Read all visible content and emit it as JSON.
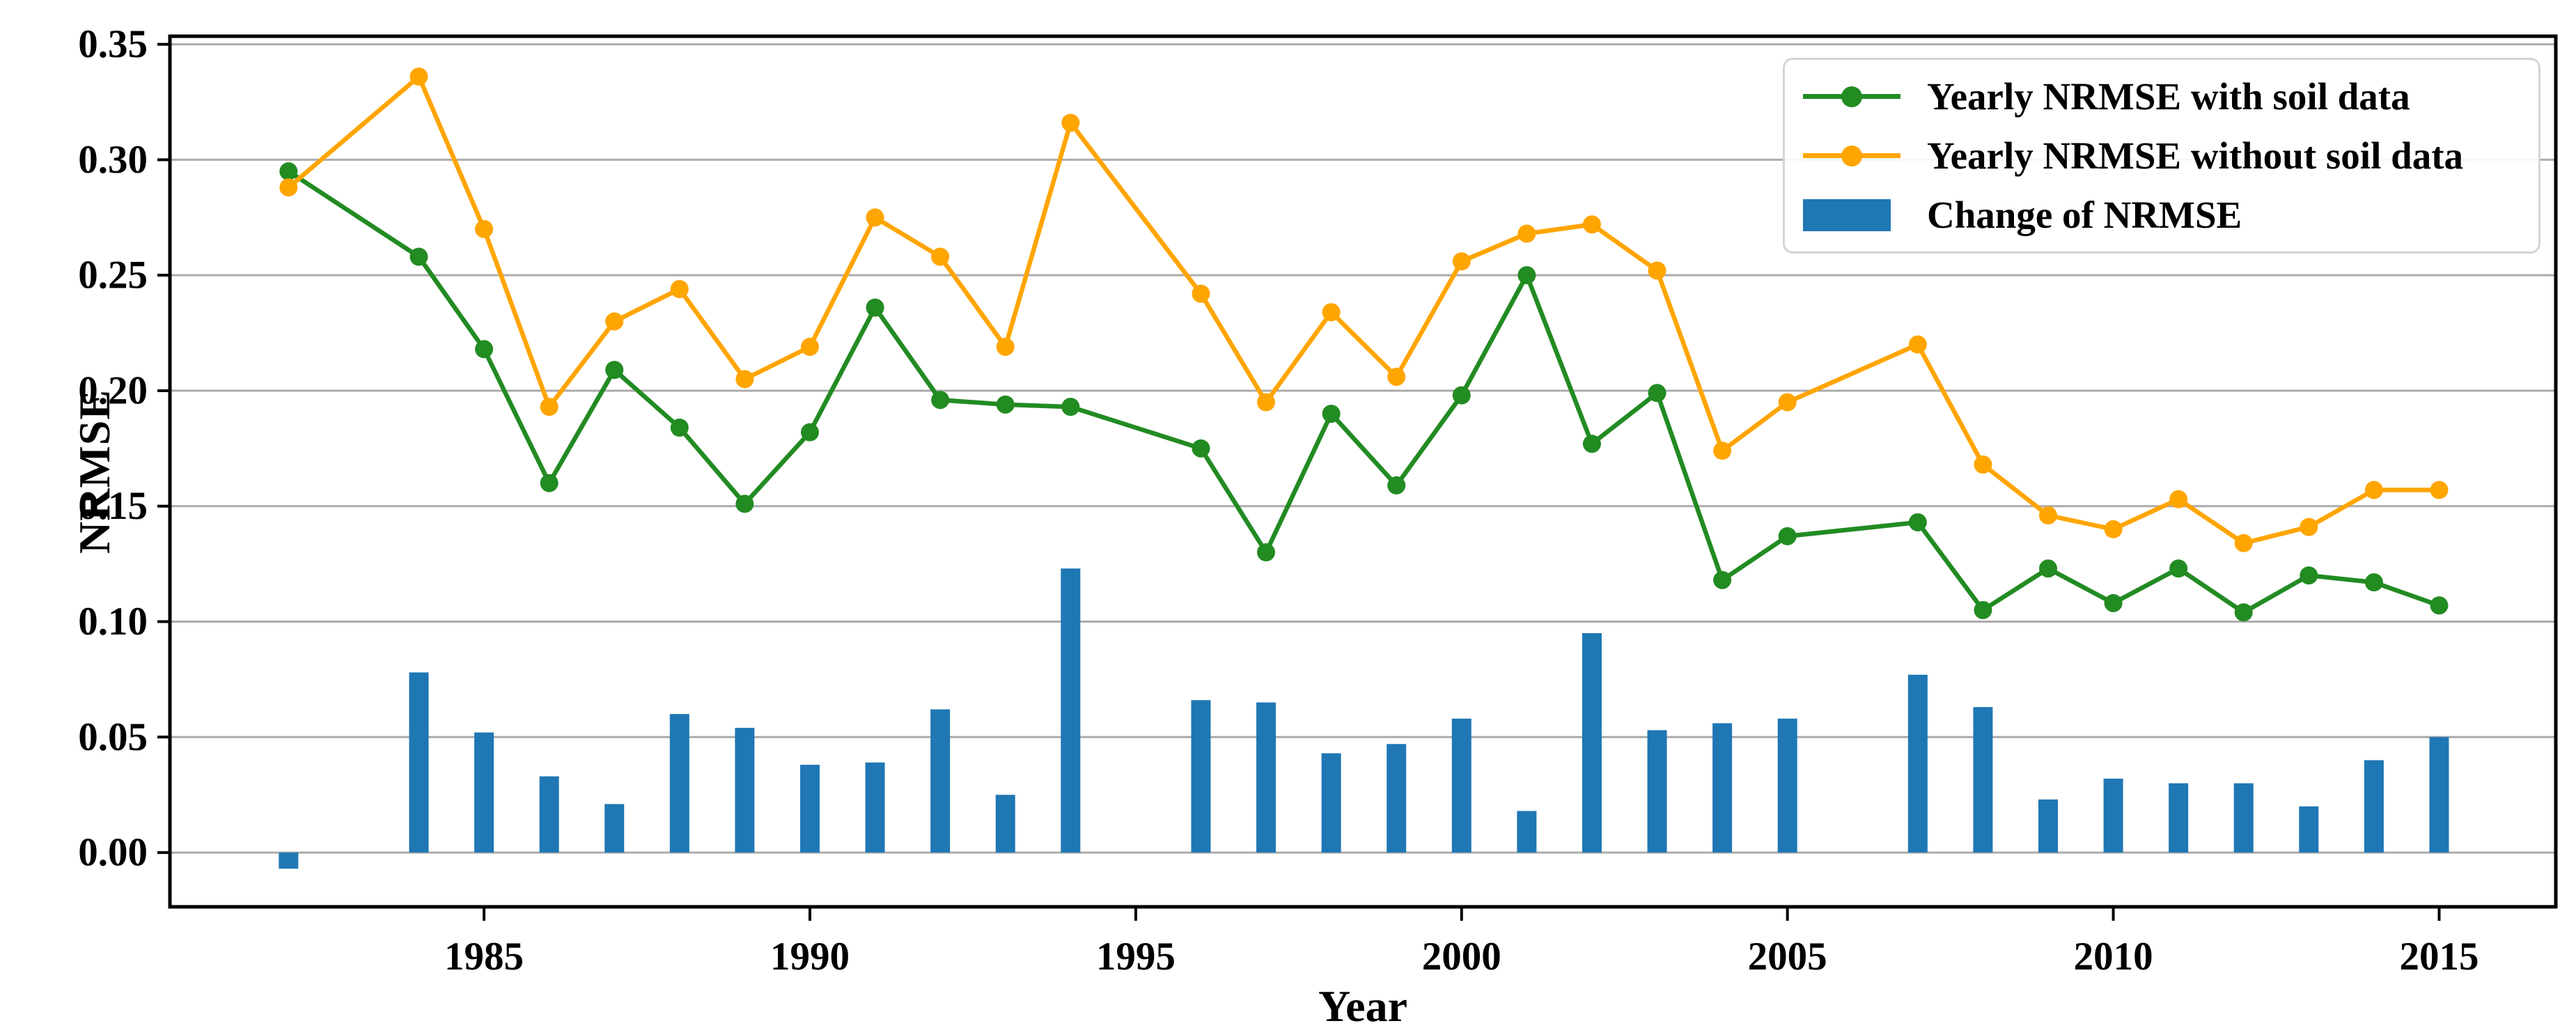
{
  "colors": {
    "green": "#228B22",
    "orange": "#FFA500",
    "blue": "#1F77B4",
    "grid": "#ABABAB",
    "spine": "#000000",
    "legend_border": "#d4d4d4"
  },
  "chart_data": {
    "type": "line+bar",
    "title": "",
    "xlabel": "Year",
    "ylabel": "NRMSE",
    "xlim": [
      1980.18,
      2016.79
    ],
    "ylim": [
      -0.0235,
      0.3535
    ],
    "xticks": [
      1985,
      1990,
      1995,
      2000,
      2005,
      2010,
      2015
    ],
    "yticks": [
      0.0,
      0.05,
      0.1,
      0.15,
      0.2,
      0.25,
      0.3,
      0.35
    ],
    "grid": "horizontal",
    "legend_position": "upper right",
    "years": [
      1982,
      1984,
      1985,
      1986,
      1987,
      1988,
      1989,
      1990,
      1991,
      1992,
      1993,
      1994,
      1996,
      1997,
      1998,
      1999,
      2000,
      2001,
      2002,
      2003,
      2004,
      2005,
      2007,
      2008,
      2009,
      2010,
      2011,
      2012,
      2013,
      2014,
      2015
    ],
    "series": [
      {
        "name": "Yearly NRMSE with soil data",
        "kind": "line",
        "color": "#228B22",
        "values": [
          0.295,
          0.258,
          0.218,
          0.16,
          0.209,
          0.184,
          0.151,
          0.182,
          0.236,
          0.196,
          0.194,
          0.193,
          0.175,
          0.13,
          0.19,
          0.159,
          0.198,
          0.25,
          0.177,
          0.199,
          0.118,
          0.137,
          0.143,
          0.105,
          0.123,
          0.108,
          0.123,
          0.104,
          0.12,
          0.117,
          0.107
        ]
      },
      {
        "name": "Yearly NRMSE without soil data",
        "kind": "line",
        "color": "#FFA500",
        "values": [
          0.288,
          0.336,
          0.27,
          0.193,
          0.23,
          0.244,
          0.205,
          0.219,
          0.275,
          0.258,
          0.219,
          0.316,
          0.242,
          0.195,
          0.234,
          0.206,
          0.256,
          0.268,
          0.272,
          0.252,
          0.174,
          0.195,
          0.22,
          0.168,
          0.146,
          0.14,
          0.153,
          0.134,
          0.141,
          0.157,
          0.157
        ]
      },
      {
        "name": "Change of NRMSE",
        "kind": "bar",
        "color": "#1F77B4",
        "values": [
          -0.007,
          0.078,
          0.052,
          0.033,
          0.021,
          0.06,
          0.054,
          0.038,
          0.039,
          0.062,
          0.025,
          0.123,
          0.066,
          0.065,
          0.043,
          0.047,
          0.058,
          0.018,
          0.095,
          0.053,
          0.056,
          0.058,
          0.077,
          0.063,
          0.023,
          0.032,
          0.03,
          0.03,
          0.02,
          0.04,
          0.05
        ]
      }
    ]
  }
}
